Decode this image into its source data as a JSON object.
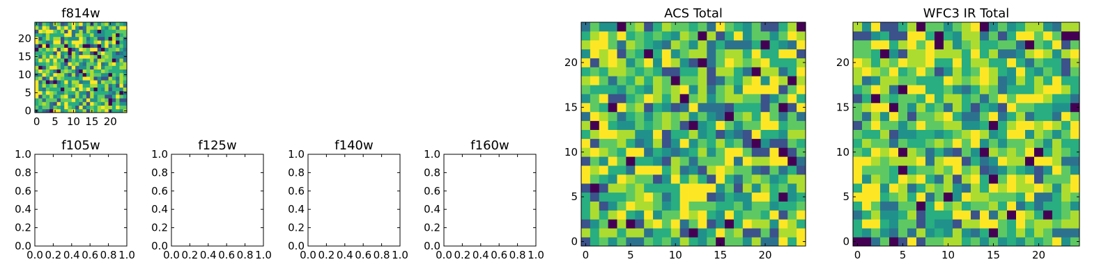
{
  "colors": {
    "palette": [
      "#440154",
      "#3b528b",
      "#2c728e",
      "#21918c",
      "#28ae80",
      "#5ec962",
      "#addc30",
      "#fde725"
    ],
    "frame": "#000000",
    "background": "#ffffff"
  },
  "chart_data": [
    {
      "id": "f814w",
      "type": "heatmap",
      "title": "f814w",
      "grid": false,
      "rows": 25,
      "cols": 25,
      "seed": 814,
      "xlim": [
        -0.5,
        24.5
      ],
      "ylim": [
        -0.5,
        24.5
      ],
      "xticks": [
        0,
        5,
        10,
        15,
        20
      ],
      "yticks": [
        0,
        5,
        10,
        15,
        20
      ],
      "xtick_labels": [
        "0",
        "5",
        "10",
        "15",
        "20"
      ],
      "ytick_labels": [
        "0",
        "5",
        "10",
        "15",
        "20"
      ],
      "value_range": [
        0,
        1
      ],
      "colormap": "viridis"
    },
    {
      "id": "f105w",
      "type": "empty",
      "title": "f105w",
      "xlim": [
        0,
        1
      ],
      "ylim": [
        0,
        1
      ],
      "xticks": [
        0,
        0.2,
        0.4,
        0.6,
        0.8,
        1.0
      ],
      "yticks": [
        0,
        0.2,
        0.4,
        0.6,
        0.8,
        1.0
      ],
      "xtick_labels": [
        "0.0",
        "0.2",
        "0.4",
        "0.6",
        "0.8",
        "1.0"
      ],
      "ytick_labels": [
        "0.0",
        "0.2",
        "0.4",
        "0.6",
        "0.8",
        "1.0"
      ]
    },
    {
      "id": "f125w",
      "type": "empty",
      "title": "f125w",
      "xlim": [
        0,
        1
      ],
      "ylim": [
        0,
        1
      ],
      "xticks": [
        0,
        0.2,
        0.4,
        0.6,
        0.8,
        1.0
      ],
      "yticks": [
        0,
        0.2,
        0.4,
        0.6,
        0.8,
        1.0
      ],
      "xtick_labels": [
        "0.0",
        "0.2",
        "0.4",
        "0.6",
        "0.8",
        "1.0"
      ],
      "ytick_labels": [
        "0.0",
        "0.2",
        "0.4",
        "0.6",
        "0.8",
        "1.0"
      ]
    },
    {
      "id": "f140w",
      "type": "empty",
      "title": "f140w",
      "xlim": [
        0,
        1
      ],
      "ylim": [
        0,
        1
      ],
      "xticks": [
        0,
        0.2,
        0.4,
        0.6,
        0.8,
        1.0
      ],
      "yticks": [
        0,
        0.2,
        0.4,
        0.6,
        0.8,
        1.0
      ],
      "xtick_labels": [
        "0.0",
        "0.2",
        "0.4",
        "0.6",
        "0.8",
        "1.0"
      ],
      "ytick_labels": [
        "0.0",
        "0.2",
        "0.4",
        "0.6",
        "0.8",
        "1.0"
      ]
    },
    {
      "id": "f160w",
      "type": "empty",
      "title": "f160w",
      "xlim": [
        0,
        1
      ],
      "ylim": [
        0,
        1
      ],
      "xticks": [
        0,
        0.2,
        0.4,
        0.6,
        0.8,
        1.0
      ],
      "yticks": [
        0,
        0.2,
        0.4,
        0.6,
        0.8,
        1.0
      ],
      "xtick_labels": [
        "0.0",
        "0.2",
        "0.4",
        "0.6",
        "0.8",
        "1.0"
      ],
      "ytick_labels": [
        "0.0",
        "0.2",
        "0.4",
        "0.6",
        "0.8",
        "1.0"
      ]
    },
    {
      "id": "acs-total",
      "type": "heatmap",
      "title": "ACS Total",
      "grid": false,
      "rows": 25,
      "cols": 25,
      "seed": 2201,
      "xlim": [
        -0.5,
        24.5
      ],
      "ylim": [
        -0.5,
        24.5
      ],
      "xticks": [
        0,
        5,
        10,
        15,
        20
      ],
      "yticks": [
        0,
        5,
        10,
        15,
        20
      ],
      "xtick_labels": [
        "0",
        "5",
        "10",
        "15",
        "20"
      ],
      "ytick_labels": [
        "0",
        "5",
        "10",
        "15",
        "20"
      ],
      "value_range": [
        0,
        1
      ],
      "colormap": "viridis"
    },
    {
      "id": "wfc3-ir-total",
      "type": "heatmap",
      "title": "WFC3 IR Total",
      "grid": false,
      "rows": 25,
      "cols": 25,
      "seed": 3303,
      "xlim": [
        -0.5,
        24.5
      ],
      "ylim": [
        -0.5,
        24.5
      ],
      "xticks": [
        0,
        5,
        10,
        15,
        20
      ],
      "yticks": [
        0,
        5,
        10,
        15,
        20
      ],
      "xtick_labels": [
        "0",
        "5",
        "10",
        "15",
        "20"
      ],
      "ytick_labels": [
        "0",
        "5",
        "10",
        "15",
        "20"
      ],
      "value_range": [
        0,
        1
      ],
      "colormap": "viridis"
    }
  ]
}
